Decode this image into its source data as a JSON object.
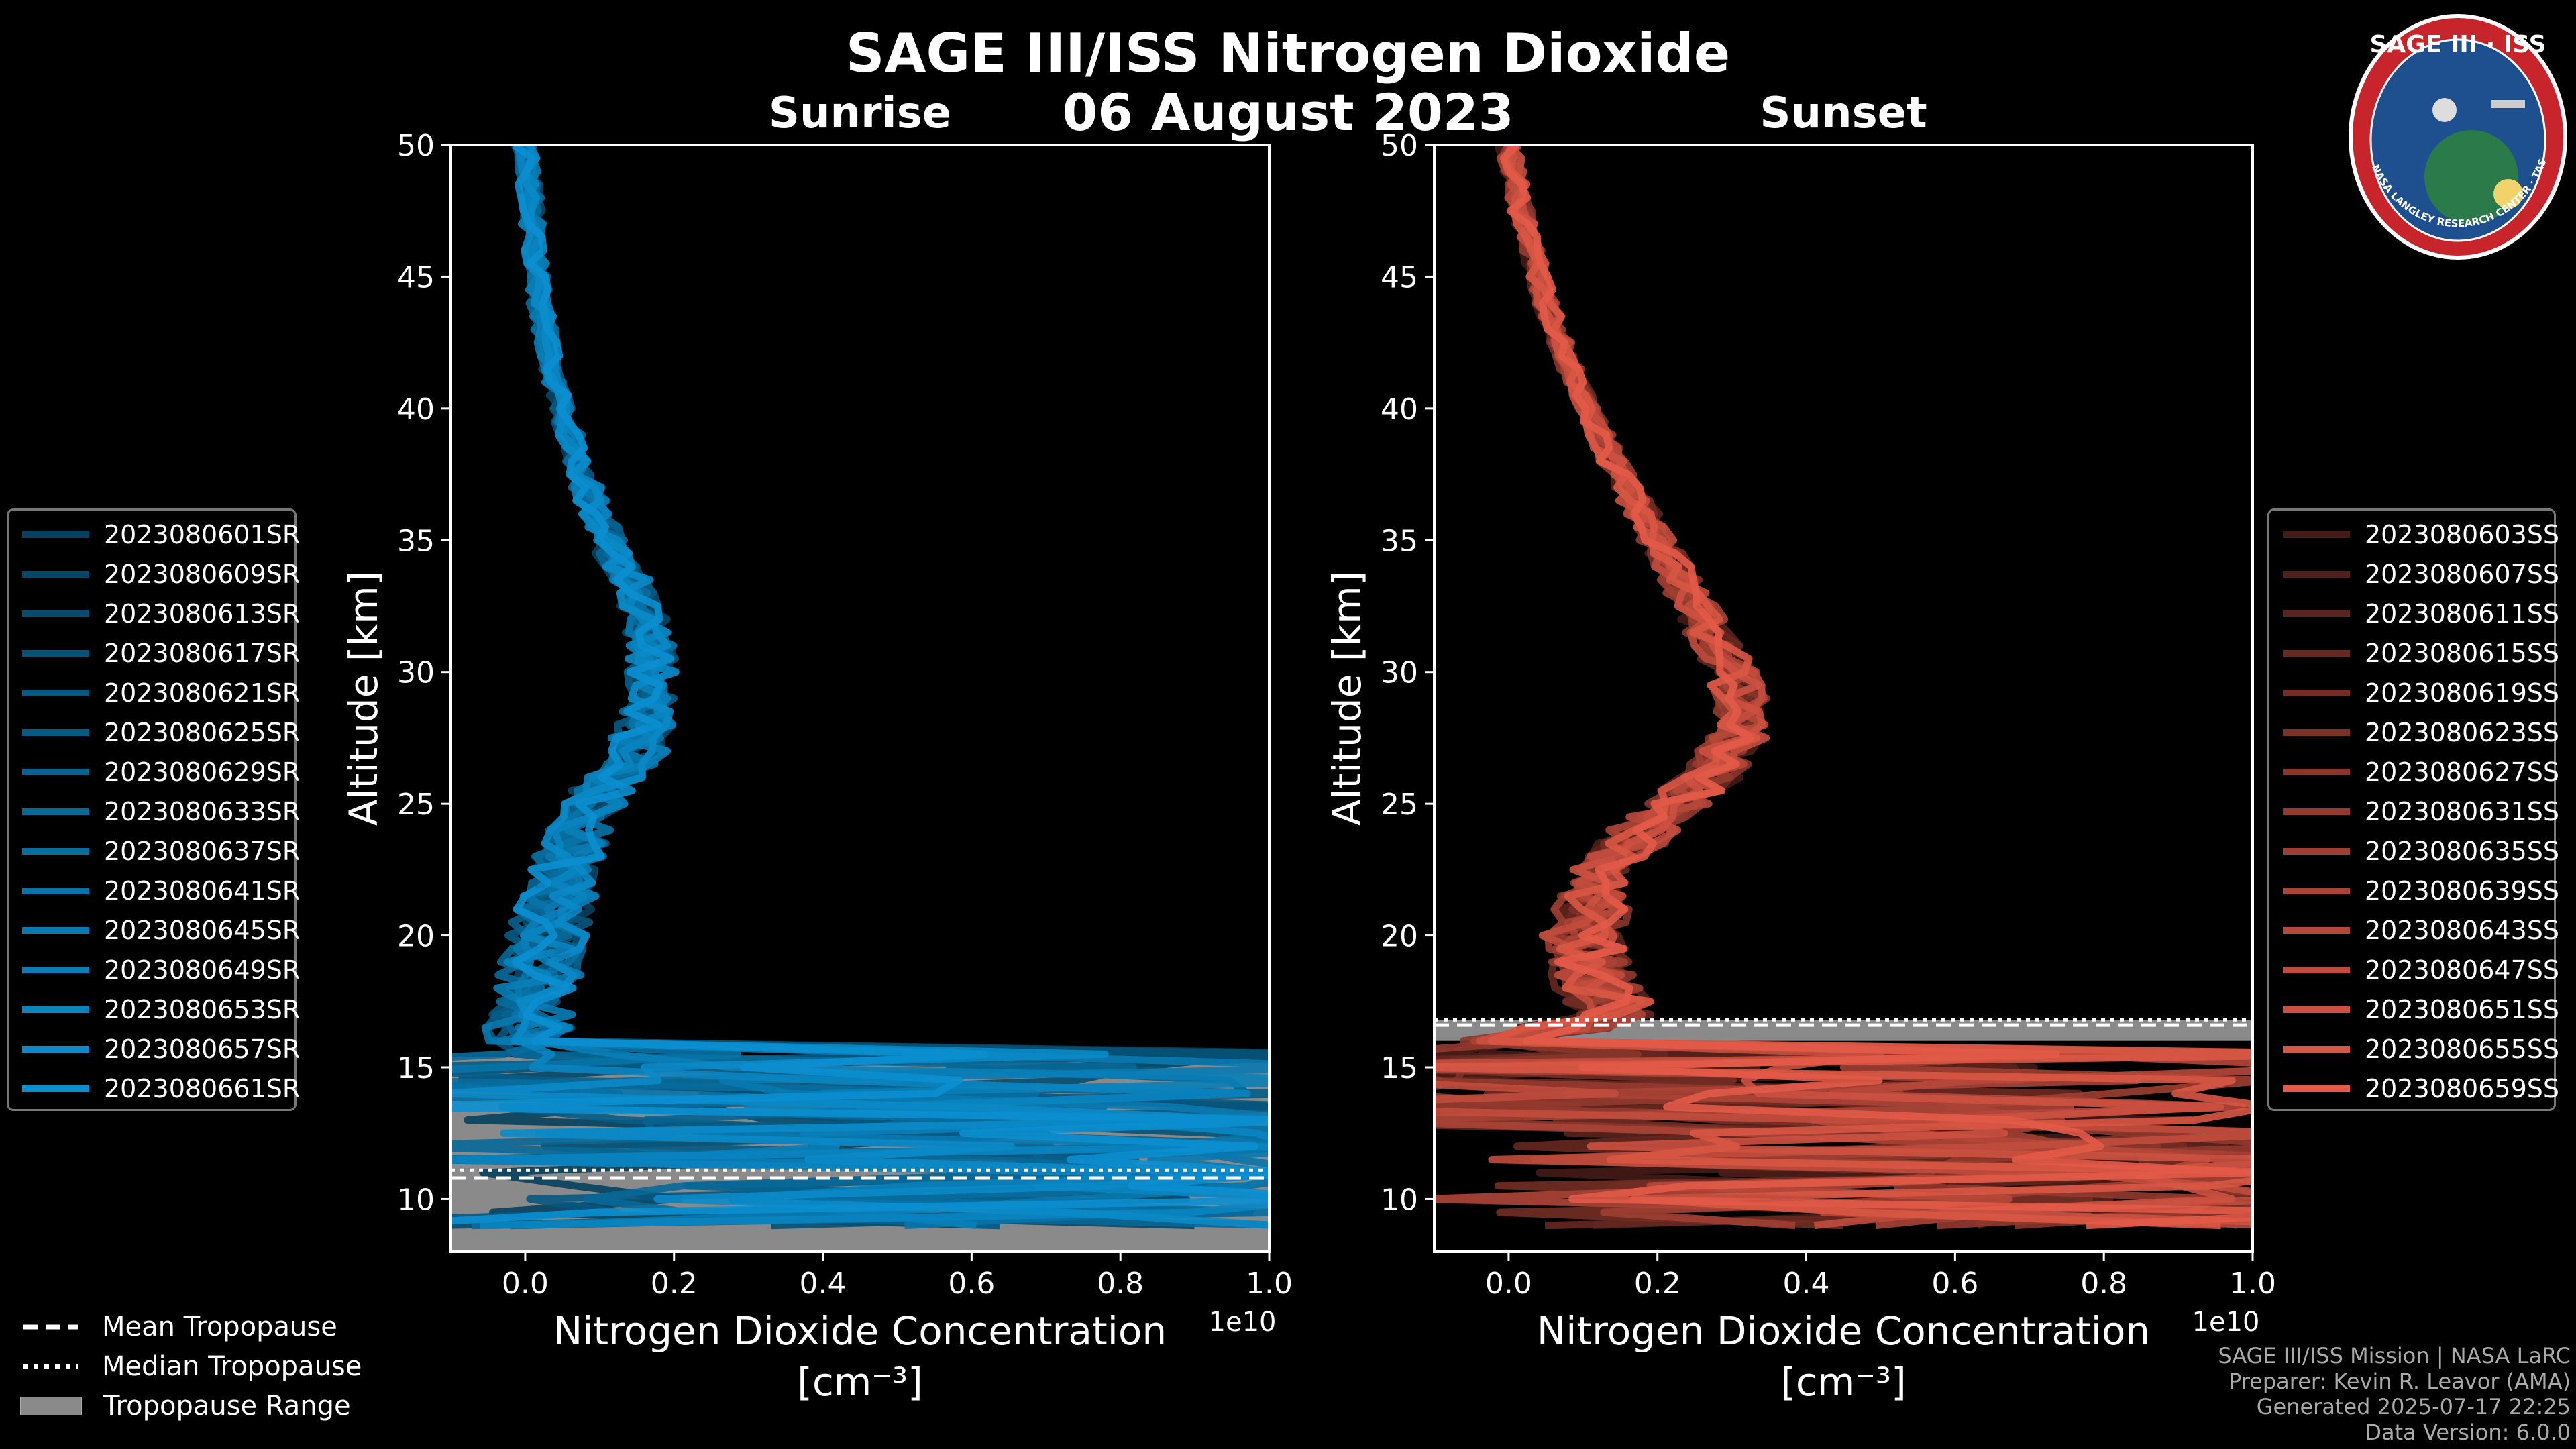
{
  "title": "SAGE III/ISS Nitrogen Dioxide",
  "date": "06 August 2023",
  "logo_text": {
    "top": "SAGE III · ISS",
    "ring": "BALL · NASA LANGLEY RESEARCH CENTER · TAS / ESA"
  },
  "colors": {
    "sunrise": "#0b8fd0",
    "sunset": "#e35a48",
    "range": "#8a8a8a",
    "background": "#000000"
  },
  "chart_data": [
    {
      "type": "line",
      "panel": "sunrise",
      "title": "Sunrise",
      "xlabel": "Nitrogen Dioxide Concentration",
      "xlabel_unit": "[cm⁻³]",
      "ylabel": "Altitude [km]",
      "x_offset_label": "1e10",
      "xlim": [
        -0.1,
        1.0
      ],
      "ylim": [
        8,
        50
      ],
      "xticks": [
        0.0,
        0.2,
        0.4,
        0.6,
        0.8,
        1.0
      ],
      "xtick_labels": [
        "0.0",
        "0.2",
        "0.4",
        "0.6",
        "0.8",
        "1.0"
      ],
      "yticks": [
        10,
        15,
        20,
        25,
        30,
        35,
        40,
        45,
        50
      ],
      "ytick_labels": [
        "10",
        "15",
        "20",
        "25",
        "30",
        "35",
        "40",
        "45",
        "50"
      ],
      "tropopause_range": [
        8,
        15.4
      ],
      "mean_tropopause": 10.8,
      "median_tropopause": 11.1,
      "base_profile": {
        "altitude": [
          50,
          47,
          44,
          41,
          38,
          35,
          33,
          31,
          29,
          27,
          25,
          23,
          21,
          19,
          17,
          16,
          15,
          14,
          13,
          12,
          11,
          10,
          9
        ],
        "concentration": [
          0.0,
          0.01,
          0.02,
          0.04,
          0.07,
          0.11,
          0.15,
          0.17,
          0.17,
          0.15,
          0.09,
          0.06,
          0.04,
          0.02,
          0.01,
          0.0,
          0.02,
          0.15,
          0.3,
          0.45,
          0.5,
          0.55,
          0.2
        ]
      },
      "series": [
        {
          "name": "2023080601SR"
        },
        {
          "name": "2023080609SR"
        },
        {
          "name": "2023080613SR"
        },
        {
          "name": "2023080617SR"
        },
        {
          "name": "2023080621SR"
        },
        {
          "name": "2023080625SR"
        },
        {
          "name": "2023080629SR"
        },
        {
          "name": "2023080633SR"
        },
        {
          "name": "2023080637SR"
        },
        {
          "name": "2023080641SR"
        },
        {
          "name": "2023080645SR"
        },
        {
          "name": "2023080649SR"
        },
        {
          "name": "2023080653SR"
        },
        {
          "name": "2023080657SR"
        },
        {
          "name": "2023080661SR"
        }
      ]
    },
    {
      "type": "line",
      "panel": "sunset",
      "title": "Sunset",
      "xlabel": "Nitrogen Dioxide Concentration",
      "xlabel_unit": "[cm⁻³]",
      "ylabel": "Altitude [km]",
      "x_offset_label": "1e10",
      "xlim": [
        -0.1,
        1.0
      ],
      "ylim": [
        8,
        50
      ],
      "xticks": [
        0.0,
        0.2,
        0.4,
        0.6,
        0.8,
        1.0
      ],
      "xtick_labels": [
        "0.0",
        "0.2",
        "0.4",
        "0.6",
        "0.8",
        "1.0"
      ],
      "yticks": [
        10,
        15,
        20,
        25,
        30,
        35,
        40,
        45,
        50
      ],
      "ytick_labels": [
        "10",
        "15",
        "20",
        "25",
        "30",
        "35",
        "40",
        "45",
        "50"
      ],
      "tropopause_range": [
        16.0,
        16.8
      ],
      "mean_tropopause": 16.6,
      "median_tropopause": 16.8,
      "base_profile": {
        "altitude": [
          50,
          47,
          44,
          41,
          38,
          35,
          32,
          30,
          28,
          26,
          24,
          22,
          20,
          18,
          17,
          16,
          15,
          14,
          13,
          12,
          11,
          10,
          9
        ],
        "concentration": [
          0.0,
          0.02,
          0.05,
          0.09,
          0.14,
          0.2,
          0.26,
          0.3,
          0.32,
          0.27,
          0.18,
          0.12,
          0.1,
          0.12,
          0.15,
          0.0,
          0.02,
          0.1,
          0.3,
          0.45,
          0.55,
          0.6,
          0.65
        ]
      },
      "series": [
        {
          "name": "2023080603SS"
        },
        {
          "name": "2023080607SS"
        },
        {
          "name": "2023080611SS"
        },
        {
          "name": "2023080615SS"
        },
        {
          "name": "2023080619SS"
        },
        {
          "name": "2023080623SS"
        },
        {
          "name": "2023080627SS"
        },
        {
          "name": "2023080631SS"
        },
        {
          "name": "2023080635SS"
        },
        {
          "name": "2023080639SS"
        },
        {
          "name": "2023080643SS"
        },
        {
          "name": "2023080647SS"
        },
        {
          "name": "2023080651SS"
        },
        {
          "name": "2023080655SS"
        },
        {
          "name": "2023080659SS"
        }
      ]
    }
  ],
  "tropopause_legend": {
    "mean": "Mean Tropopause",
    "median": "Median Tropopause",
    "range": "Tropopause Range"
  },
  "credits": {
    "line1": "SAGE III/ISS Mission | NASA LaRC",
    "line2": "Preparer: Kevin R. Leavor (AMA)",
    "line3": "Generated 2025-07-17 22:25",
    "line4": "Data Version: 6.0.0"
  }
}
